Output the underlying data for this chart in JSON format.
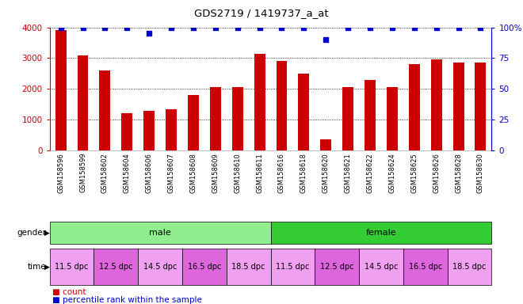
{
  "title": "GDS2719 / 1419737_a_at",
  "samples": [
    "GSM158596",
    "GSM158599",
    "GSM158602",
    "GSM158604",
    "GSM158606",
    "GSM158607",
    "GSM158608",
    "GSM158609",
    "GSM158610",
    "GSM158611",
    "GSM158616",
    "GSM158618",
    "GSM158620",
    "GSM158621",
    "GSM158622",
    "GSM158624",
    "GSM158625",
    "GSM158626",
    "GSM158628",
    "GSM158630"
  ],
  "bar_values": [
    3900,
    3100,
    2600,
    1200,
    1300,
    1350,
    1800,
    2050,
    2050,
    3150,
    2900,
    2500,
    350,
    2050,
    2300,
    2050,
    2800,
    2950,
    2850,
    2850
  ],
  "percentile_values": [
    100,
    100,
    100,
    100,
    95,
    100,
    100,
    100,
    100,
    100,
    100,
    100,
    90,
    100,
    100,
    100,
    100,
    100,
    100,
    100
  ],
  "bar_color": "#cc0000",
  "dot_color": "#0000cc",
  "ylim_left": [
    0,
    4000
  ],
  "ylim_right": [
    0,
    100
  ],
  "yticks_left": [
    0,
    1000,
    2000,
    3000,
    4000
  ],
  "yticks_right": [
    0,
    25,
    50,
    75,
    100
  ],
  "ytick_labels_left": [
    "0",
    "1000",
    "2000",
    "3000",
    "4000"
  ],
  "ytick_labels_right": [
    "0",
    "25",
    "50",
    "75",
    "100%"
  ],
  "left_tick_color": "#cc0000",
  "right_tick_color": "#0000cc",
  "gender_groups": [
    {
      "label": "male",
      "start": 0,
      "end": 10,
      "color": "#90ee90"
    },
    {
      "label": "female",
      "start": 10,
      "end": 20,
      "color": "#33cc33"
    }
  ],
  "time_groups": [
    {
      "label": "11.5 dpc",
      "start": 0,
      "end": 2,
      "color": "#f0a0f0"
    },
    {
      "label": "12.5 dpc",
      "start": 2,
      "end": 4,
      "color": "#dd66dd"
    },
    {
      "label": "14.5 dpc",
      "start": 4,
      "end": 6,
      "color": "#f0a0f0"
    },
    {
      "label": "16.5 dpc",
      "start": 6,
      "end": 8,
      "color": "#dd66dd"
    },
    {
      "label": "18.5 dpc",
      "start": 8,
      "end": 10,
      "color": "#f0a0f0"
    },
    {
      "label": "11.5 dpc",
      "start": 10,
      "end": 12,
      "color": "#f0a0f0"
    },
    {
      "label": "12.5 dpc",
      "start": 12,
      "end": 14,
      "color": "#dd66dd"
    },
    {
      "label": "14.5 dpc",
      "start": 14,
      "end": 16,
      "color": "#f0a0f0"
    },
    {
      "label": "16.5 dpc",
      "start": 16,
      "end": 18,
      "color": "#dd66dd"
    },
    {
      "label": "18.5 dpc",
      "start": 18,
      "end": 20,
      "color": "#f0a0f0"
    }
  ],
  "bg_color": "#ffffff",
  "bar_width": 0.5
}
